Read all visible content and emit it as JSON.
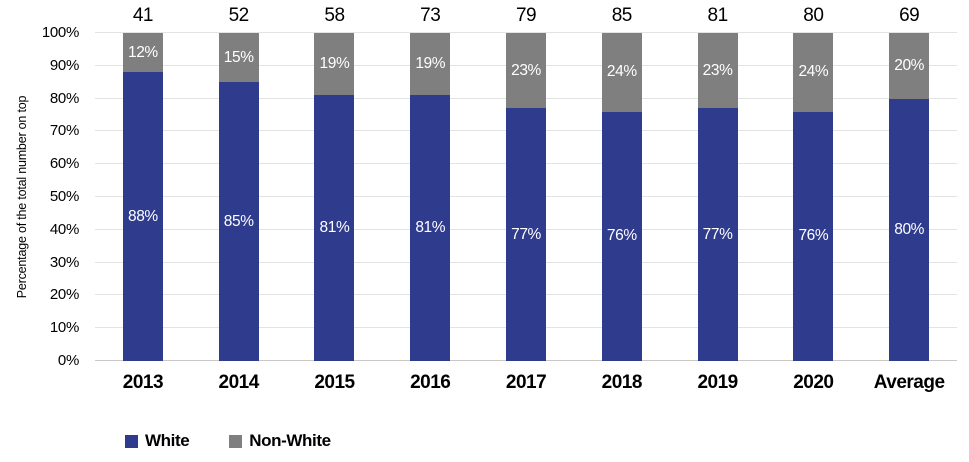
{
  "chart_data": {
    "type": "bar",
    "variant": "stacked-percentage",
    "title": "",
    "ylabel": "Percentage of the total number on top",
    "xlabel": "",
    "categories": [
      "2013",
      "2014",
      "2015",
      "2016",
      "2017",
      "2018",
      "2019",
      "2020",
      "Average"
    ],
    "totals_on_top": [
      41,
      52,
      58,
      73,
      79,
      85,
      81,
      80,
      69
    ],
    "series": [
      {
        "name": "White",
        "color": "#2f3b8d",
        "values": [
          88,
          85,
          81,
          81,
          77,
          76,
          77,
          76,
          80
        ],
        "labels": [
          "88%",
          "85%",
          "81%",
          "81%",
          "77%",
          "76%",
          "77%",
          "76%",
          "80%"
        ]
      },
      {
        "name": "Non-White",
        "color": "#7f7f7f",
        "values": [
          12,
          15,
          19,
          19,
          23,
          24,
          23,
          24,
          20
        ],
        "labels": [
          "12%",
          "15%",
          "19%",
          "19%",
          "23%",
          "24%",
          "23%",
          "24%",
          "20%"
        ]
      }
    ],
    "y_ticks": [
      "0%",
      "10%",
      "20%",
      "30%",
      "40%",
      "50%",
      "60%",
      "70%",
      "80%",
      "90%",
      "100%"
    ],
    "ylim": [
      0,
      100
    ],
    "grid": true,
    "legend_position": "bottom-left"
  },
  "colors": {
    "white_bar": "#2f3b8d",
    "nonwhite_bar": "#7f7f7f",
    "gridline": "#e3e3e3",
    "baseline": "#c9c9c9",
    "segment_label_text": "#ffffff",
    "text": "#000000",
    "background": "#ffffff"
  }
}
